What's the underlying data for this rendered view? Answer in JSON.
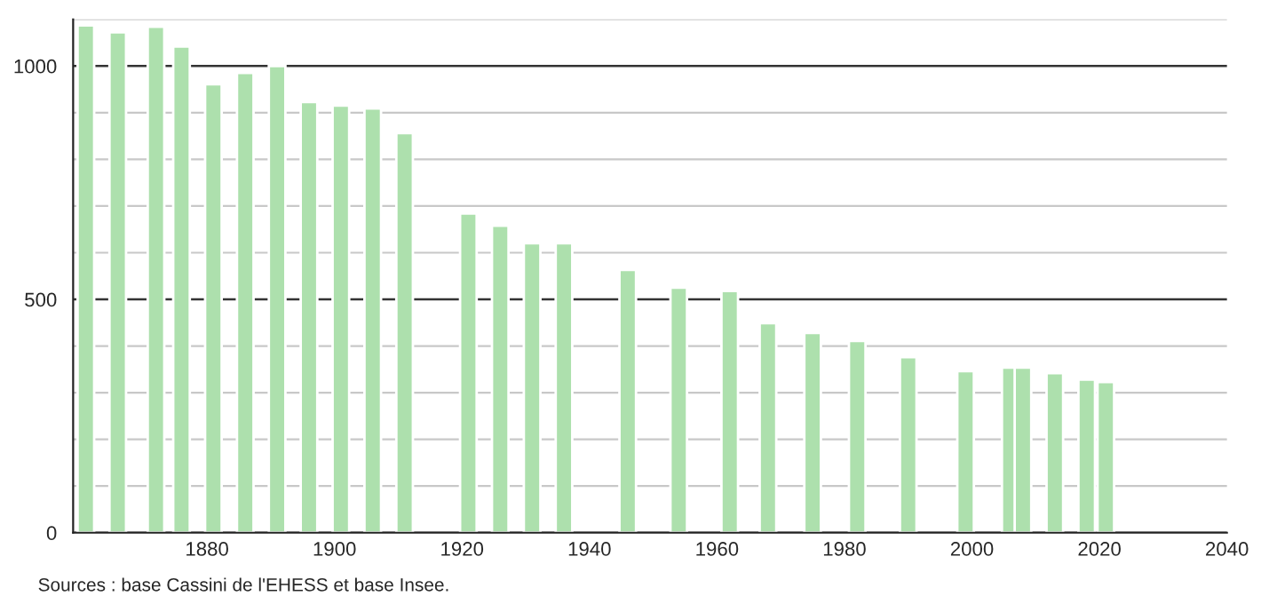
{
  "chart_data": {
    "type": "bar",
    "x": [
      1861,
      1866,
      1872,
      1876,
      1881,
      1886,
      1891,
      1896,
      1901,
      1906,
      1911,
      1921,
      1926,
      1931,
      1936,
      1946,
      1954,
      1962,
      1968,
      1975,
      1982,
      1990,
      1999,
      2006,
      2008,
      2013,
      2018,
      2021
    ],
    "values": [
      1087,
      1072,
      1084,
      1042,
      961,
      985,
      1000,
      923,
      915,
      909,
      856,
      684,
      658,
      620,
      620,
      563,
      525,
      518,
      449,
      428,
      411,
      376,
      346,
      354,
      354,
      342,
      328,
      323
    ],
    "color": "#ade0ad",
    "xlim": [
      1859,
      2040
    ],
    "xticks": [
      1880,
      1900,
      1920,
      1940,
      1960,
      1980,
      2000,
      2020,
      2040
    ],
    "ylim": [
      0,
      1100
    ],
    "yticks": [
      0,
      {
        "value": 100,
        "label": null
      },
      {
        "value": 200,
        "label": null
      },
      {
        "value": 300,
        "label": null
      },
      {
        "value": 400,
        "label": null
      },
      500,
      {
        "value": 600,
        "label": null
      },
      {
        "value": 700,
        "label": null
      },
      {
        "value": 800,
        "label": null
      },
      {
        "value": 900,
        "label": null
      },
      1000,
      {
        "value": 1100,
        "label": null
      }
    ],
    "grid": "y",
    "annotations": [
      "Sources : base Cassini de l'EHESS et base Insee."
    ]
  }
}
